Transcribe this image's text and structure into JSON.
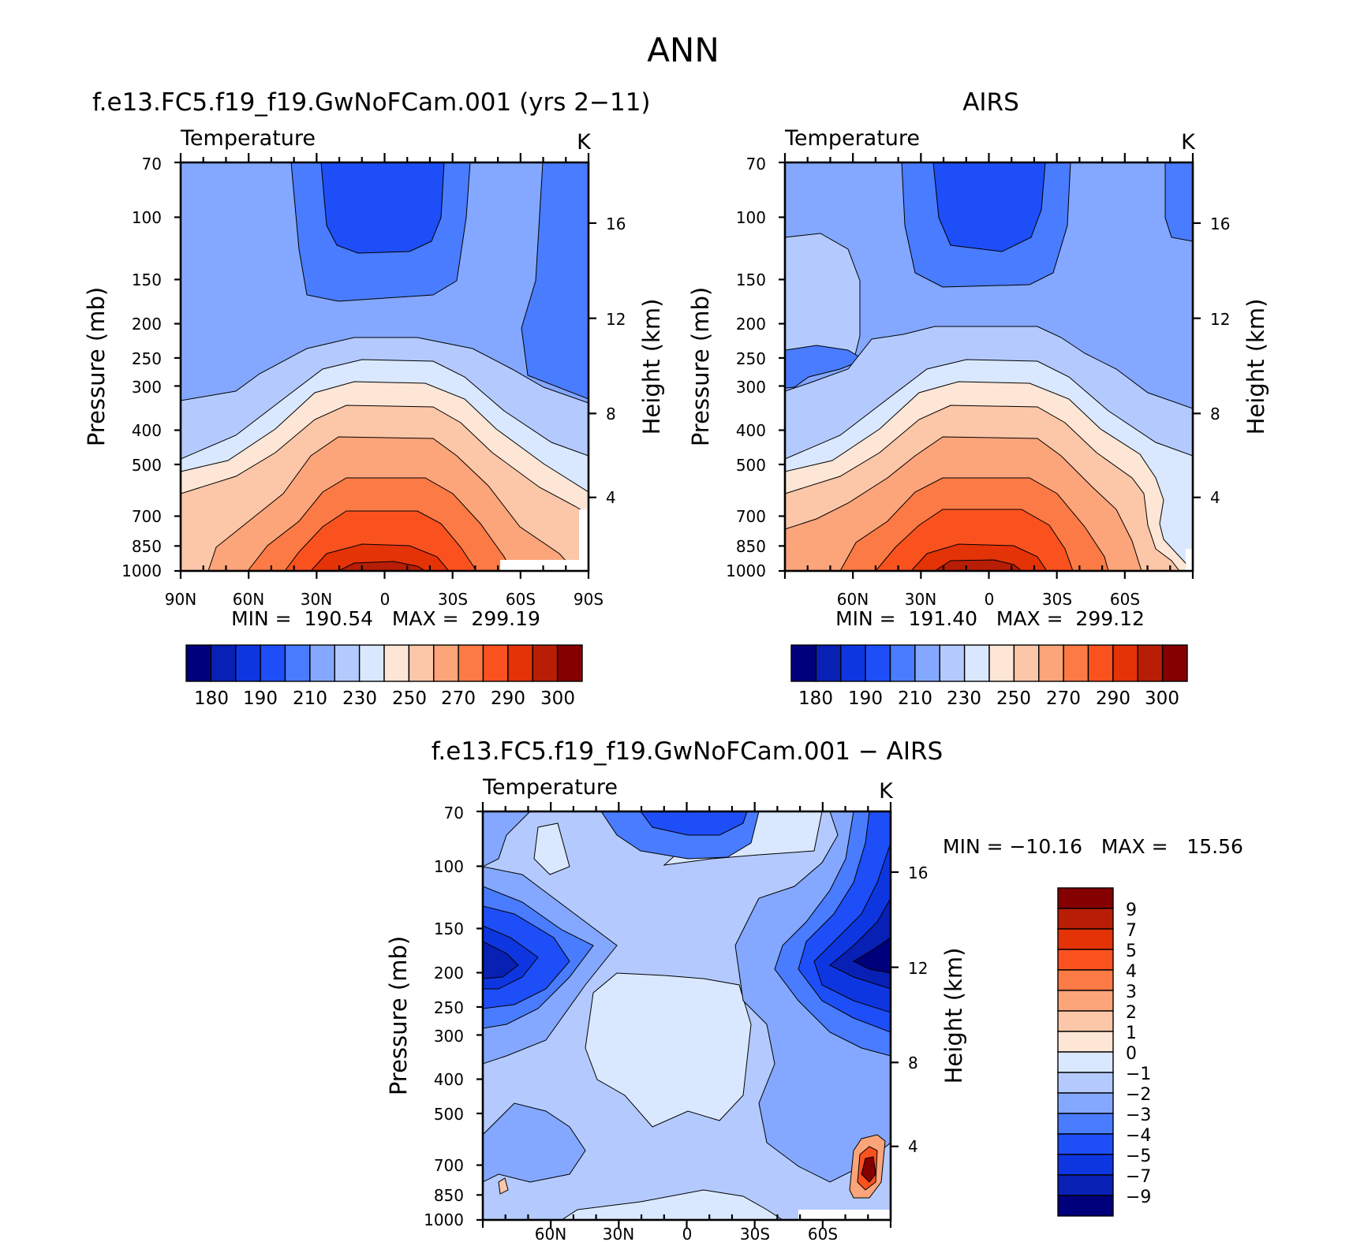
{
  "figure": {
    "title": "ANN"
  },
  "chart_data": [
    {
      "type": "heatmap",
      "title": "f.e13.FC5.f19_f19.GwNoFCam.001 (yrs 2−11)",
      "subtitle_left": "Temperature",
      "subtitle_right": "K",
      "xlabel": "",
      "ylabel": "Pressure (mb)",
      "ylabel_right": "Height (km)",
      "xticks": [
        "90N",
        "60N",
        "30N",
        "0",
        "30S",
        "60S",
        "90S"
      ],
      "yticks": [
        "70",
        "100",
        "150",
        "200",
        "250",
        "300",
        "400",
        "500",
        "700",
        "850",
        "1000"
      ],
      "yticks_right": [
        "16",
        "12",
        "8",
        "4"
      ],
      "ylim": [
        1000,
        70
      ],
      "stats": "MIN =  190.54   MAX =  299.19",
      "min": 190.54,
      "max": 299.19,
      "colorbar_labels": [
        "180",
        "190",
        "210",
        "230",
        "250",
        "270",
        "290",
        "300"
      ],
      "colorbar_colors": [
        "#00007c",
        "#0820b4",
        "#0e36e0",
        "#1e4ef8",
        "#4a7cff",
        "#84a8ff",
        "#b4caff",
        "#dae8ff",
        "#fee6d6",
        "#fcc6a8",
        "#fca47a",
        "#fb7a45",
        "#fa521f",
        "#e33307",
        "#b81e06",
        "#850000"
      ]
    },
    {
      "type": "heatmap",
      "title": "AIRS",
      "subtitle_left": "Temperature",
      "subtitle_right": "K",
      "xlabel": "",
      "ylabel": "Pressure (mb)",
      "ylabel_right": "Height (km)",
      "xticks": [
        "60N",
        "30N",
        "0",
        "30S",
        "60S"
      ],
      "yticks": [
        "70",
        "100",
        "150",
        "200",
        "250",
        "300",
        "400",
        "500",
        "700",
        "850",
        "1000"
      ],
      "yticks_right": [
        "16",
        "12",
        "8",
        "4"
      ],
      "ylim": [
        1000,
        70
      ],
      "stats": "MIN =  191.40   MAX =  299.12",
      "min": 191.4,
      "max": 299.12,
      "colorbar_labels": [
        "180",
        "190",
        "210",
        "230",
        "250",
        "270",
        "290",
        "300"
      ],
      "colorbar_colors": [
        "#00007c",
        "#0820b4",
        "#0e36e0",
        "#1e4ef8",
        "#4a7cff",
        "#84a8ff",
        "#b4caff",
        "#dae8ff",
        "#fee6d6",
        "#fcc6a8",
        "#fca47a",
        "#fb7a45",
        "#fa521f",
        "#e33307",
        "#b81e06",
        "#850000"
      ]
    },
    {
      "type": "heatmap",
      "title": "f.e13.FC5.f19_f19.GwNoFCam.001 − AIRS",
      "subtitle_left": "Temperature",
      "subtitle_right": "K",
      "xlabel": "",
      "ylabel": "Pressure (mb)",
      "ylabel_right": "Height (km)",
      "xticks": [
        "60N",
        "30N",
        "0",
        "30S",
        "60S"
      ],
      "yticks": [
        "70",
        "100",
        "150",
        "200",
        "250",
        "300",
        "400",
        "500",
        "700",
        "850",
        "1000"
      ],
      "yticks_right": [
        "16",
        "12",
        "8",
        "4"
      ],
      "ylim": [
        1000,
        70
      ],
      "stats": "MIN = −10.16   MAX =   15.56",
      "min": -10.16,
      "max": 15.56,
      "colorbar_labels": [
        "9",
        "7",
        "5",
        "4",
        "3",
        "2",
        "1",
        "0",
        "−1",
        "−2",
        "−3",
        "−4",
        "−5",
        "−7",
        "−9"
      ],
      "colorbar_colors": [
        "#850000",
        "#b81e06",
        "#e33307",
        "#fa521f",
        "#fb7a45",
        "#fca47a",
        "#fcc6a8",
        "#fee6d6",
        "#dae8ff",
        "#b4caff",
        "#84a8ff",
        "#4a7cff",
        "#1e4ef8",
        "#0e36e0",
        "#0820b4",
        "#00007c"
      ]
    }
  ]
}
